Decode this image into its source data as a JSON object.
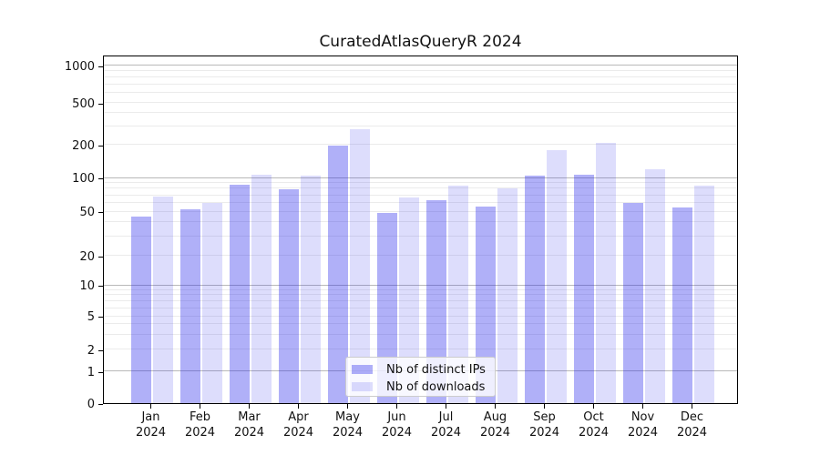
{
  "title": "CuratedAtlasQueryR 2024",
  "chart_data": {
    "type": "bar",
    "title": "CuratedAtlasQueryR 2024",
    "x_month_labels": [
      "Jan",
      "Feb",
      "Mar",
      "Apr",
      "May",
      "Jun",
      "Jul",
      "Aug",
      "Sep",
      "Oct",
      "Nov",
      "Dec"
    ],
    "x_year_label": "2024",
    "series": [
      {
        "name": "Nb of distinct IPs",
        "color": "#1e1eeb",
        "alpha": 0.35,
        "values": [
          45,
          52,
          87,
          79,
          198,
          49,
          63,
          55,
          105,
          107,
          60,
          54
        ]
      },
      {
        "name": "Nb of downloads",
        "color": "#1e1eeb",
        "alpha": 0.15,
        "values": [
          68,
          60,
          106,
          104,
          280,
          67,
          86,
          81,
          178,
          210,
          120,
          86
        ]
      }
    ],
    "y_ticks": [
      0,
      1,
      2,
      5,
      10,
      20,
      50,
      100,
      200,
      500,
      1000
    ],
    "y_scale": "symlog",
    "ylim": [
      0,
      1150
    ],
    "grid": true,
    "legend_position": "lower-center",
    "colors": {
      "bar_dark_rendered": "#b0b0f8",
      "bar_light_rendered": "#dddDfc",
      "grid_major": "#b9b9b9",
      "grid_minor": "#ebebeb",
      "axis": "#000000",
      "text": "#111111"
    }
  }
}
